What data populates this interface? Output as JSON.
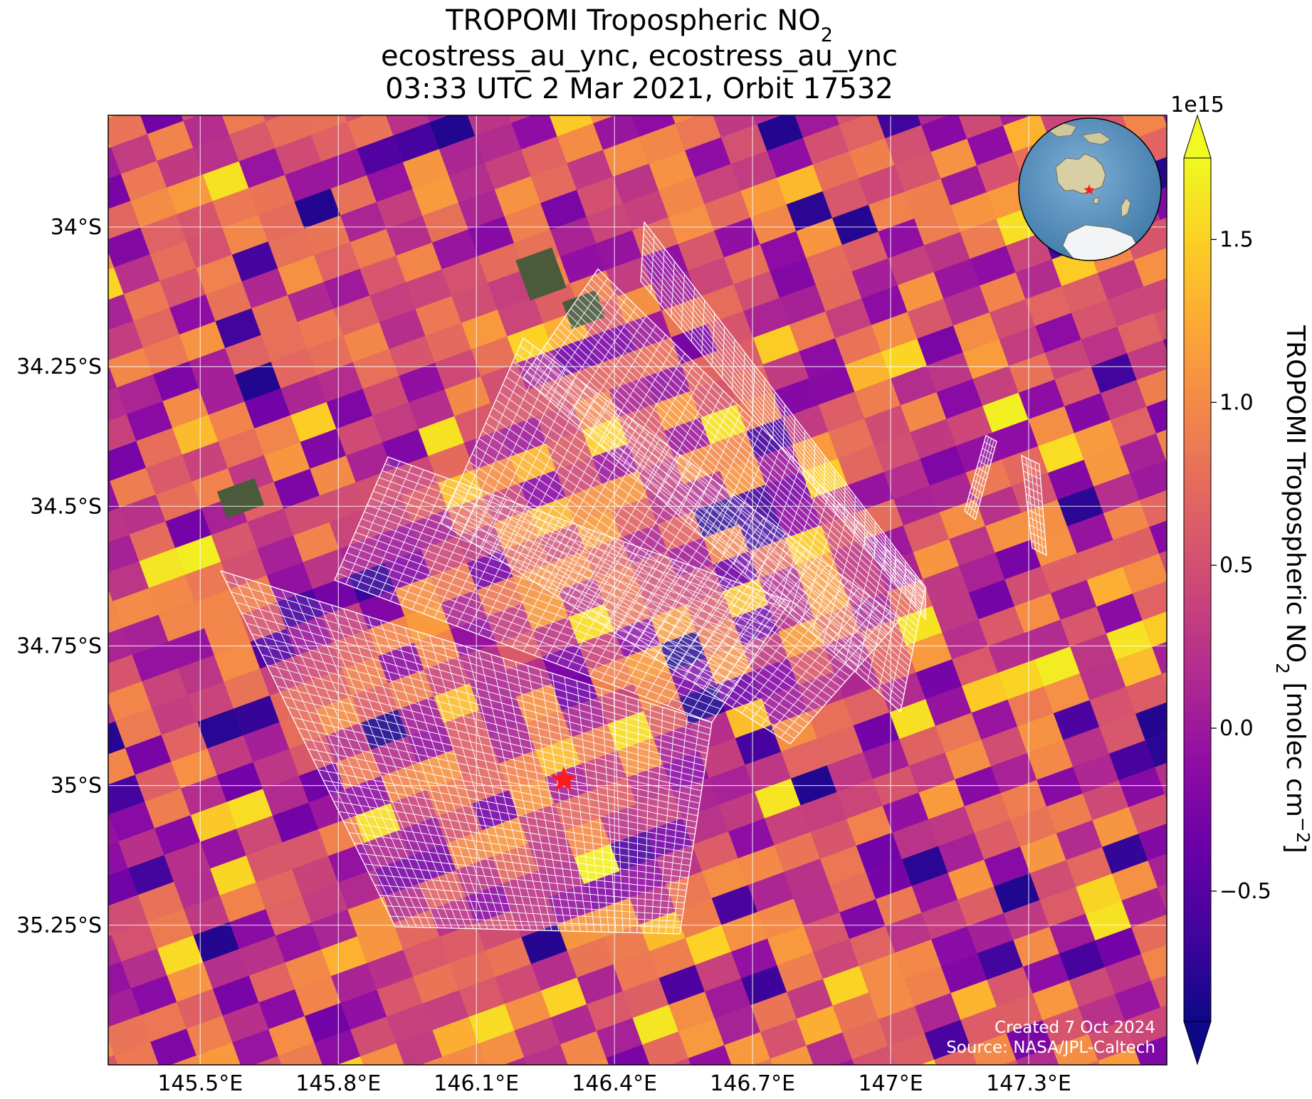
{
  "title": {
    "line1_prefix": "TROPOMI Tropospheric NO",
    "line1_sub": "2",
    "line2": "ecostress_au_ync, ecostress_au_ync",
    "line3": "03:33 UTC 2 Mar 2021, Orbit 17532"
  },
  "map": {
    "lon_range": [
      145.3,
      147.6
    ],
    "lat_range": [
      -35.5,
      -33.8
    ],
    "site_marker": {
      "lon": 146.29,
      "lat": -34.99,
      "symbol": "star",
      "color": "#ff1a1a"
    },
    "site_marker_icon": "star-icon",
    "gridlines": true
  },
  "axes": {
    "x_ticks": [
      {
        "value": 145.5,
        "label": "145.5°E"
      },
      {
        "value": 145.8,
        "label": "145.8°E"
      },
      {
        "value": 146.1,
        "label": "146.1°E"
      },
      {
        "value": 146.4,
        "label": "146.4°E"
      },
      {
        "value": 146.7,
        "label": "146.7°E"
      },
      {
        "value": 147.0,
        "label": "147°E"
      },
      {
        "value": 147.3,
        "label": "147.3°E"
      }
    ],
    "y_ticks": [
      {
        "value": -34.0,
        "label": "34°S"
      },
      {
        "value": -34.25,
        "label": "34.25°S"
      },
      {
        "value": -34.5,
        "label": "34.5°S"
      },
      {
        "value": -34.75,
        "label": "34.75°S"
      },
      {
        "value": -35.0,
        "label": "35°S"
      },
      {
        "value": -35.25,
        "label": "35.25°S"
      }
    ]
  },
  "colorbar": {
    "colormap": "plasma",
    "range": [
      -0.9,
      1.75
    ],
    "multiplier": "1e15",
    "label_prefix": "TROPOMI Tropospheric NO",
    "label_sub": "2",
    "label_suffix": " [molec cm",
    "label_sup": "−2",
    "label_end": "]",
    "ticks": [
      {
        "value": -0.5,
        "label": "−0.5"
      },
      {
        "value": 0.0,
        "label": "0.0"
      },
      {
        "value": 0.5,
        "label": "0.5"
      },
      {
        "value": 1.0,
        "label": "1.0"
      },
      {
        "value": 1.5,
        "label": "1.5"
      }
    ],
    "extend": "both"
  },
  "inset_globe": {
    "region": "Australia",
    "marker_color": "#ff1a1a"
  },
  "credits": {
    "created": "Created 7 Oct 2024",
    "source": "Source: NASA/JPL-Caltech"
  }
}
